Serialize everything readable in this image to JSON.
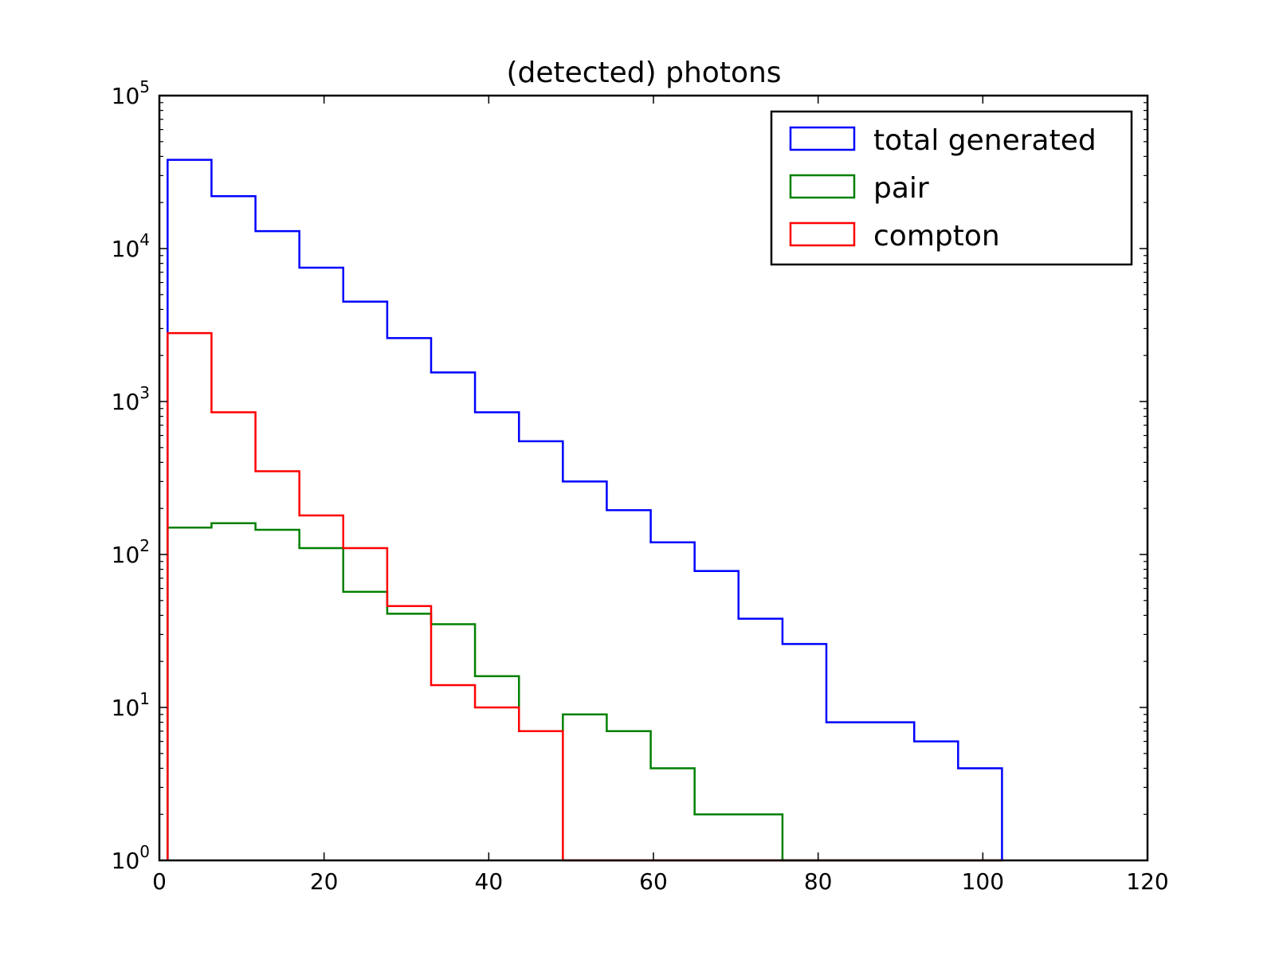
{
  "chart_data": {
    "type": "histogram",
    "title": "(detected) photons",
    "xlabel": "",
    "ylabel": "",
    "xlim": [
      0,
      120
    ],
    "ylim": [
      1,
      100000
    ],
    "yscale": "log",
    "grid": false,
    "legend_position": "top-right",
    "x_ticks": [
      0,
      20,
      40,
      60,
      80,
      100,
      120
    ],
    "x_tick_labels": [
      "0",
      "20",
      "40",
      "60",
      "80",
      "100",
      "120"
    ],
    "y_ticks": [
      1,
      10,
      100,
      1000,
      10000,
      100000
    ],
    "y_tick_labels": [
      {
        "base": "10",
        "exp": "0"
      },
      {
        "base": "10",
        "exp": "1"
      },
      {
        "base": "10",
        "exp": "2"
      },
      {
        "base": "10",
        "exp": "3"
      },
      {
        "base": "10",
        "exp": "4"
      },
      {
        "base": "10",
        "exp": "5"
      }
    ],
    "bin_edges": [
      1,
      6.33,
      11.67,
      17,
      22.33,
      27.67,
      33,
      38.33,
      43.67,
      49,
      54.33,
      59.67,
      65,
      70.33,
      75.67,
      81,
      86.33,
      91.67,
      97,
      102.33
    ],
    "series": [
      {
        "name": "total generated",
        "color": "#0000ff",
        "values": [
          38000,
          22000,
          13000,
          7500,
          4500,
          2600,
          1550,
          850,
          550,
          300,
          195,
          120,
          78,
          38,
          26,
          8,
          8,
          6,
          4
        ]
      },
      {
        "name": "pair",
        "color": "#008000",
        "values": [
          150,
          160,
          145,
          110,
          57,
          41,
          35,
          16,
          7,
          9,
          7,
          4,
          2,
          2,
          0,
          0,
          0,
          0,
          0
        ]
      },
      {
        "name": "compton",
        "color": "#ff0000",
        "values": [
          2800,
          850,
          350,
          180,
          110,
          46,
          14,
          10,
          7,
          0,
          0,
          0,
          0,
          0,
          0,
          0,
          0,
          0,
          0
        ]
      }
    ]
  }
}
